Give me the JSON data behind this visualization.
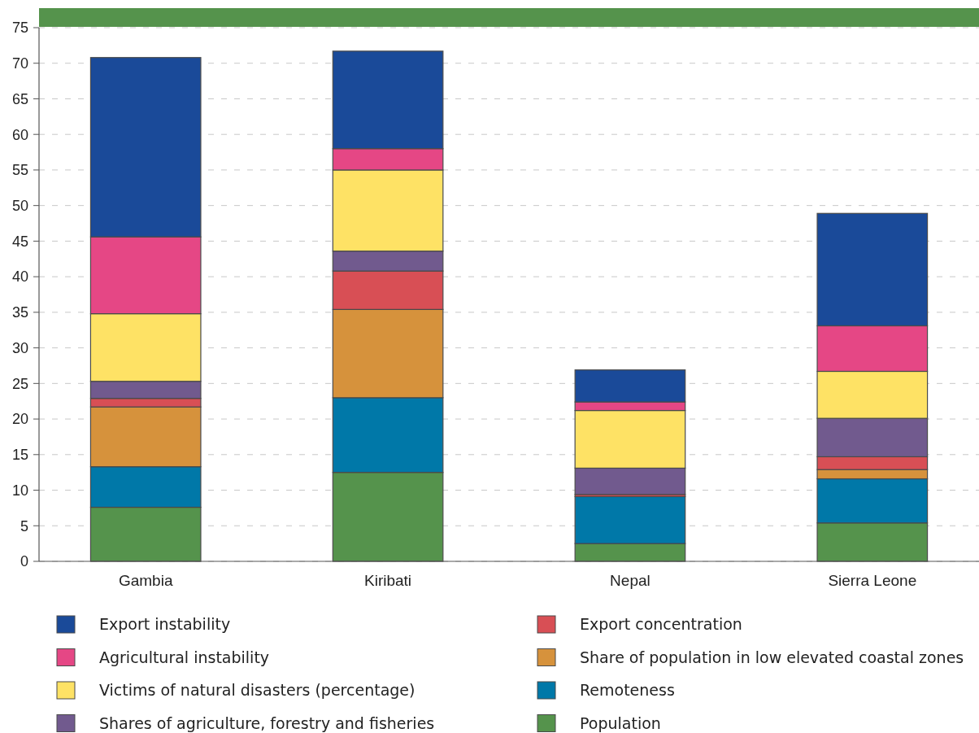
{
  "chart_data": {
    "type": "bar",
    "stacked": true,
    "categories": [
      "Gambia",
      "Kiribati",
      "Nepal",
      "Sierra Leone"
    ],
    "series": [
      {
        "name": "Population",
        "color": "#55934c",
        "values": [
          7.6,
          12.5,
          2.5,
          5.4
        ]
      },
      {
        "name": "Remoteness",
        "color": "#0078a8",
        "values": [
          5.7,
          10.5,
          6.6,
          6.2
        ]
      },
      {
        "name": "Share of population in low elevated coastal zones",
        "color": "#d6923c",
        "values": [
          8.4,
          12.4,
          0,
          1.3
        ]
      },
      {
        "name": "Export concentration",
        "color": "#d84f55",
        "values": [
          1.2,
          5.4,
          0.3,
          1.8
        ]
      },
      {
        "name": "Shares of agriculture, forestry and fisheries",
        "color": "#715a8e",
        "values": [
          2.4,
          2.8,
          3.7,
          5.4
        ]
      },
      {
        "name": "Victims of natural disasters (percentage)",
        "color": "#fee265",
        "values": [
          9.5,
          11.4,
          8.1,
          6.6
        ]
      },
      {
        "name": "Agricultural instability",
        "color": "#e54785",
        "values": [
          10.8,
          3.0,
          1.2,
          6.4
        ]
      },
      {
        "name": "Export instability",
        "color": "#1a4a99",
        "values": [
          25.2,
          13.7,
          4.5,
          15.8
        ]
      }
    ],
    "ylim": [
      0,
      75
    ],
    "yticks": [
      0,
      5,
      10,
      15,
      20,
      25,
      30,
      35,
      40,
      45,
      50,
      55,
      60,
      65,
      70,
      75
    ],
    "grid": "y",
    "legend": "bottom"
  }
}
